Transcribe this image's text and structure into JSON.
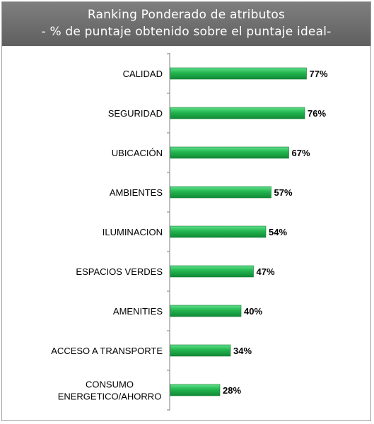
{
  "chart_data": {
    "type": "bar",
    "orientation": "horizontal",
    "title": "Ranking Ponderado de atributos",
    "subtitle": "- % de puntaje obtenido sobre el puntaje ideal-",
    "categories": [
      "CALIDAD",
      "SEGURIDAD",
      "UBICACIÓN",
      "AMBIENTES",
      "ILUMINACION",
      "ESPACIOS VERDES",
      "AMENITIES",
      "ACCESO A TRANSPORTE",
      "CONSUMO ENERGETICO/AHORRO"
    ],
    "category_lines": [
      [
        "CALIDAD"
      ],
      [
        "SEGURIDAD"
      ],
      [
        "UBICACIÓN"
      ],
      [
        "AMBIENTES"
      ],
      [
        "ILUMINACION"
      ],
      [
        "ESPACIOS VERDES"
      ],
      [
        "AMENITIES"
      ],
      [
        "ACCESO A TRANSPORTE"
      ],
      [
        "CONSUMO",
        "ENERGETICO/AHORRO"
      ]
    ],
    "values": [
      77,
      76,
      67,
      57,
      54,
      47,
      40,
      34,
      28
    ],
    "value_labels": [
      "77%",
      "76%",
      "67%",
      "57%",
      "54%",
      "47%",
      "40%",
      "34%",
      "28%"
    ],
    "unit": "%",
    "xlim": [
      0,
      100
    ],
    "grid": false,
    "legend": "none",
    "colors": {
      "bar_top": "#5fe08a",
      "bar_mid": "#22b54f",
      "bar_bottom": "#118a36",
      "bar_edge": "#0e7a2f",
      "header_bg": "#6e6e6e",
      "axis": "#7f7f7f"
    }
  }
}
